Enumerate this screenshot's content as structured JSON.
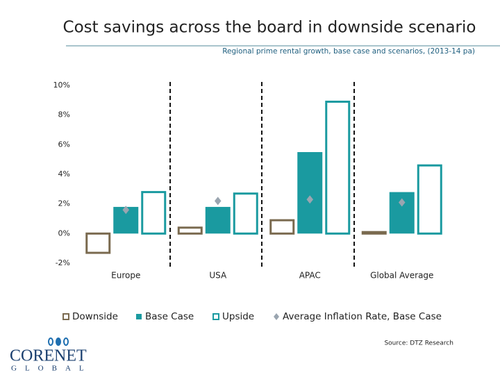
{
  "title": "Cost savings across the board in downside scenario",
  "source": "Source: DTZ Research",
  "logo": {
    "name": "CORENET",
    "sub": "GLOBAL"
  },
  "chart_data": {
    "type": "bar",
    "subtitle": "Regional prime rental growth, base case and scenarios, (2013-14 pa)",
    "categories": [
      "Europe",
      "USA",
      "APAC",
      "Global Average"
    ],
    "series": [
      {
        "name": "Downside",
        "color": "#7a6a4f",
        "fill": "none",
        "values": [
          -1.3,
          0.4,
          0.9,
          0.1
        ]
      },
      {
        "name": "Base Case",
        "color": "#1a9aa0",
        "fill": "#1a9aa0",
        "values": [
          1.8,
          1.8,
          5.5,
          2.8
        ]
      },
      {
        "name": "Upside",
        "color": "#1a9aa0",
        "fill": "none",
        "values": [
          2.8,
          2.7,
          8.9,
          4.6
        ]
      },
      {
        "name": "Average Inflation Rate, Base Case",
        "color": "#9aa5b0",
        "marker": "diamond",
        "values": [
          1.6,
          2.2,
          2.3,
          2.1
        ]
      }
    ],
    "ylim": [
      -2,
      10
    ],
    "yticks": [
      {
        "value": -2,
        "label": "-2%"
      },
      {
        "value": 0,
        "label": "0%"
      },
      {
        "value": 2,
        "label": "2%"
      },
      {
        "value": 4,
        "label": "4%"
      },
      {
        "value": 6,
        "label": "6%"
      },
      {
        "value": 8,
        "label": "8%"
      },
      {
        "value": 10,
        "label": "10%"
      }
    ],
    "grid": false
  }
}
